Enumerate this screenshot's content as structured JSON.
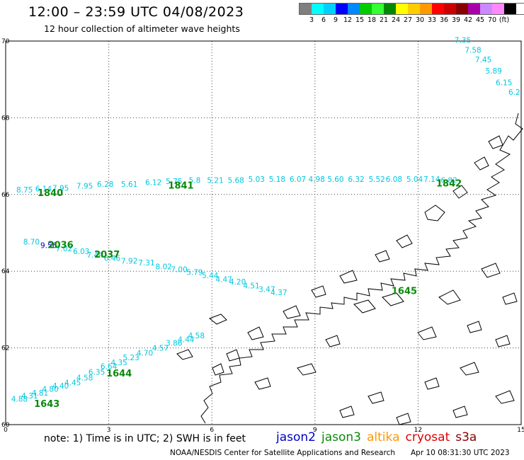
{
  "header": {
    "title": "12:00 – 23:59 UTC 04/08/2023",
    "subtitle": "12 hour collection of altimeter wave heights"
  },
  "legend": {
    "colors": [
      "#7f7f7f",
      "#00ffff",
      "#00d0ff",
      "#0000ff",
      "#0088ff",
      "#00cc00",
      "#33ff33",
      "#008800",
      "#ffff00",
      "#ffcc00",
      "#ff9900",
      "#ff0000",
      "#cc0000",
      "#880000",
      "#aa00aa",
      "#cc88ff",
      "#ff88ff",
      "#000000"
    ],
    "labels": [
      "3",
      "6",
      "9",
      "12",
      "15",
      "18",
      "21",
      "24",
      "27",
      "30",
      "33",
      "36",
      "39",
      "42",
      "45",
      "70",
      "(ft)"
    ]
  },
  "axes": {
    "x_ticks": [
      "0",
      "3",
      "6",
      "9",
      "12",
      "15"
    ],
    "y_ticks": [
      "70",
      "68",
      "66",
      "64",
      "62",
      "60"
    ]
  },
  "tracks": {
    "colors": {
      "jason3_time": "#0a8a0a",
      "cyan": "#00c8e0",
      "blue": "#0000c0"
    },
    "wave_labels": [
      {
        "text": "7.35",
        "x": 13.3,
        "y": 69.95,
        "color": "cyan"
      },
      {
        "text": "7.58",
        "x": 13.6,
        "y": 69.7,
        "color": "cyan"
      },
      {
        "text": "7.45",
        "x": 13.9,
        "y": 69.45,
        "color": "cyan"
      },
      {
        "text": "5.89",
        "x": 14.2,
        "y": 69.15,
        "color": "cyan"
      },
      {
        "text": "6.15",
        "x": 14.5,
        "y": 68.85,
        "color": "cyan"
      },
      {
        "text": "6.2",
        "x": 14.8,
        "y": 68.6,
        "color": "cyan"
      },
      {
        "text": "8.75",
        "x": 0.55,
        "y": 66.05,
        "color": "cyan"
      },
      {
        "text": "6.14",
        "x": 1.1,
        "y": 66.08,
        "color": "cyan"
      },
      {
        "text": "7.95",
        "x": 1.6,
        "y": 66.1,
        "color": "cyan"
      },
      {
        "text": "7.95",
        "x": 2.3,
        "y": 66.15,
        "color": "cyan"
      },
      {
        "text": "6.28",
        "x": 2.9,
        "y": 66.2,
        "color": "cyan"
      },
      {
        "text": "5.61",
        "x": 3.6,
        "y": 66.2,
        "color": "cyan"
      },
      {
        "text": "6.12",
        "x": 4.3,
        "y": 66.25,
        "color": "cyan"
      },
      {
        "text": "5.75",
        "x": 4.9,
        "y": 66.27,
        "color": "cyan"
      },
      {
        "text": "5.8",
        "x": 5.5,
        "y": 66.3,
        "color": "cyan"
      },
      {
        "text": "5.21",
        "x": 6.1,
        "y": 66.3,
        "color": "cyan"
      },
      {
        "text": "5.68",
        "x": 6.7,
        "y": 66.3,
        "color": "cyan"
      },
      {
        "text": "5.03",
        "x": 7.3,
        "y": 66.33,
        "color": "cyan"
      },
      {
        "text": "5.18",
        "x": 7.9,
        "y": 66.33,
        "color": "cyan"
      },
      {
        "text": "6.07",
        "x": 8.5,
        "y": 66.33,
        "color": "cyan"
      },
      {
        "text": "4.98",
        "x": 9.05,
        "y": 66.33,
        "color": "cyan"
      },
      {
        "text": "5.60",
        "x": 9.6,
        "y": 66.33,
        "color": "cyan"
      },
      {
        "text": "6.32",
        "x": 10.2,
        "y": 66.33,
        "color": "cyan"
      },
      {
        "text": "5.52",
        "x": 10.8,
        "y": 66.33,
        "color": "cyan"
      },
      {
        "text": "6.08",
        "x": 11.3,
        "y": 66.33,
        "color": "cyan"
      },
      {
        "text": "5.04",
        "x": 11.9,
        "y": 66.33,
        "color": "cyan"
      },
      {
        "text": "7.14",
        "x": 12.4,
        "y": 66.33,
        "color": "cyan"
      },
      {
        "text": "6.82",
        "x": 12.9,
        "y": 66.3,
        "color": "cyan"
      },
      {
        "text": "8.70",
        "x": 0.75,
        "y": 64.7,
        "color": "cyan"
      },
      {
        "text": "9.56",
        "x": 1.25,
        "y": 64.6,
        "color": "blue"
      },
      {
        "text": "7.02",
        "x": 1.7,
        "y": 64.52,
        "color": "cyan"
      },
      {
        "text": "6.03",
        "x": 2.2,
        "y": 64.45,
        "color": "cyan"
      },
      {
        "text": "7.44",
        "x": 2.6,
        "y": 64.35,
        "color": "cyan"
      },
      {
        "text": "6.46",
        "x": 3.1,
        "y": 64.27,
        "color": "cyan"
      },
      {
        "text": "7.92",
        "x": 3.6,
        "y": 64.2,
        "color": "cyan"
      },
      {
        "text": "7.31",
        "x": 4.1,
        "y": 64.15,
        "color": "cyan"
      },
      {
        "text": "8.02",
        "x": 4.6,
        "y": 64.05,
        "color": "cyan"
      },
      {
        "text": "7.00",
        "x": 5.05,
        "y": 63.98,
        "color": "cyan"
      },
      {
        "text": "5.79",
        "x": 5.5,
        "y": 63.9,
        "color": "cyan"
      },
      {
        "text": "5.44",
        "x": 5.95,
        "y": 63.82,
        "color": "cyan"
      },
      {
        "text": "4.47",
        "x": 6.35,
        "y": 63.72,
        "color": "cyan"
      },
      {
        "text": "4.20",
        "x": 6.75,
        "y": 63.65,
        "color": "cyan"
      },
      {
        "text": "4.51",
        "x": 7.15,
        "y": 63.55,
        "color": "cyan"
      },
      {
        "text": "3.47",
        "x": 7.6,
        "y": 63.46,
        "color": "cyan"
      },
      {
        "text": "4.37",
        "x": 7.95,
        "y": 63.38,
        "color": "cyan"
      },
      {
        "text": "4.88",
        "x": 0.4,
        "y": 60.6,
        "color": "cyan"
      },
      {
        "text": "4.31",
        "x": 0.7,
        "y": 60.68,
        "color": "cyan"
      },
      {
        "text": "4.81",
        "x": 1.0,
        "y": 60.76,
        "color": "cyan"
      },
      {
        "text": "4.80",
        "x": 1.3,
        "y": 60.86,
        "color": "cyan"
      },
      {
        "text": "4.40",
        "x": 1.6,
        "y": 60.94,
        "color": "cyan"
      },
      {
        "text": "4.45",
        "x": 1.95,
        "y": 61.02,
        "color": "cyan"
      },
      {
        "text": "4.58",
        "x": 2.3,
        "y": 61.15,
        "color": "cyan"
      },
      {
        "text": "6.35",
        "x": 2.65,
        "y": 61.3,
        "color": "cyan"
      },
      {
        "text": "6.64",
        "x": 3.0,
        "y": 61.45,
        "color": "cyan"
      },
      {
        "text": "4.35",
        "x": 3.3,
        "y": 61.55,
        "color": "cyan"
      },
      {
        "text": "5.23",
        "x": 3.65,
        "y": 61.68,
        "color": "cyan"
      },
      {
        "text": "4.70",
        "x": 4.05,
        "y": 61.8,
        "color": "cyan"
      },
      {
        "text": "4.57",
        "x": 4.5,
        "y": 61.93,
        "color": "cyan"
      },
      {
        "text": "3.86",
        "x": 4.9,
        "y": 62.06,
        "color": "cyan"
      },
      {
        "text": "4.44",
        "x": 5.25,
        "y": 62.15,
        "color": "cyan"
      },
      {
        "text": "4.58",
        "x": 5.55,
        "y": 62.25,
        "color": "cyan"
      }
    ],
    "time_labels": [
      {
        "text": "1840",
        "x": 1.3,
        "y": 66.05
      },
      {
        "text": "1841",
        "x": 5.1,
        "y": 66.25
      },
      {
        "text": "1842",
        "x": 12.9,
        "y": 66.3
      },
      {
        "text": "2036",
        "x": 1.6,
        "y": 64.7
      },
      {
        "text": "2037",
        "x": 2.95,
        "y": 64.45
      },
      {
        "text": "1645",
        "x": 11.6,
        "y": 63.5
      },
      {
        "text": "1644",
        "x": 3.3,
        "y": 61.35
      },
      {
        "text": "1643",
        "x": 1.2,
        "y": 60.55
      }
    ]
  },
  "footer": {
    "note": "note:  1) Time is in UTC; 2) SWH is in feet",
    "satellites": [
      {
        "name": "jason2",
        "color": "#0000c8"
      },
      {
        "name": "jason3",
        "color": "#0a8a0a"
      },
      {
        "name": "altika",
        "color": "#ff9900"
      },
      {
        "name": "cryosat",
        "color": "#dd0000"
      },
      {
        "name": "s3a",
        "color": "#880000"
      }
    ],
    "credit": "NOAA/NESDIS Center for Satellite Applications and Research",
    "timestamp": "Apr 10 08:31:30 UTC 2023"
  }
}
